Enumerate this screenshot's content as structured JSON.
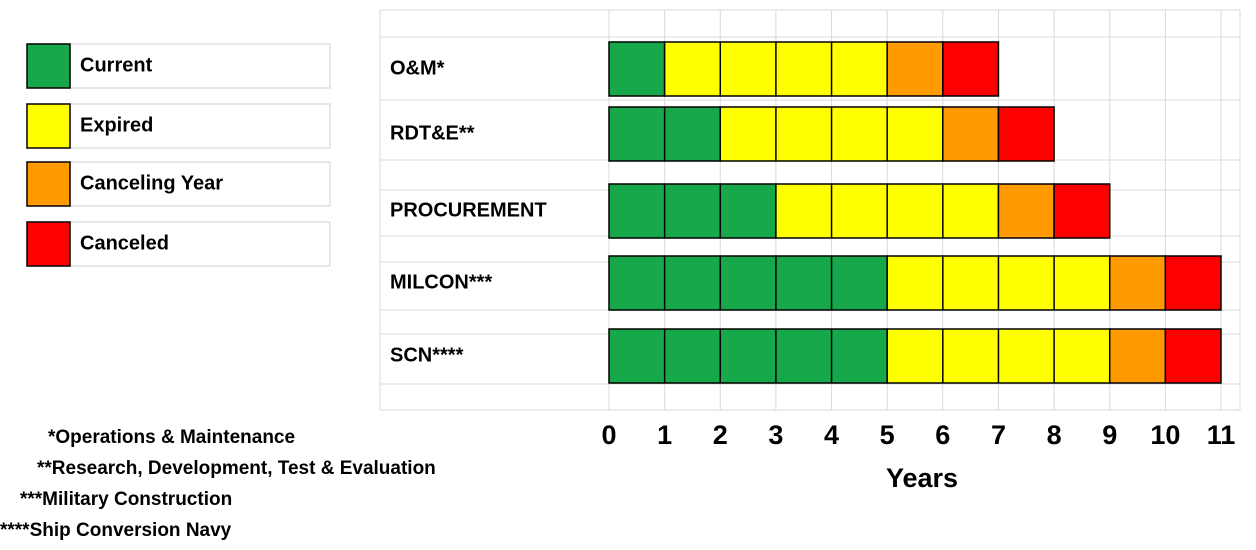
{
  "chart_data": {
    "type": "bar",
    "orientation": "horizontal",
    "stacked": true,
    "categories": [
      "O&M*",
      "RDT&E**",
      "PROCUREMENT",
      "MILCON***",
      "SCN****"
    ],
    "series": [
      {
        "name": "Current",
        "color": "#18a84c",
        "values": [
          1,
          2,
          3,
          5,
          5
        ]
      },
      {
        "name": "Expired",
        "color": "#ffff00",
        "values": [
          4,
          4,
          4,
          4,
          4
        ]
      },
      {
        "name": "Canceling Year",
        "color": "#ff9a00",
        "values": [
          1,
          1,
          1,
          1,
          1
        ]
      },
      {
        "name": "Canceled",
        "color": "#ff0000",
        "values": [
          1,
          1,
          1,
          1,
          1
        ]
      }
    ],
    "xlim": [
      0,
      11
    ],
    "xticks": [
      0,
      1,
      2,
      3,
      4,
      5,
      6,
      7,
      8,
      9,
      10,
      11
    ],
    "xlabel": "Years",
    "grid": true,
    "legend": "top-left",
    "annotations": [
      "*Operations & Maintenance",
      "**Research, Development, Test  & Evaluation",
      "***Military Construction",
      "****Ship Conversion Navy"
    ]
  }
}
